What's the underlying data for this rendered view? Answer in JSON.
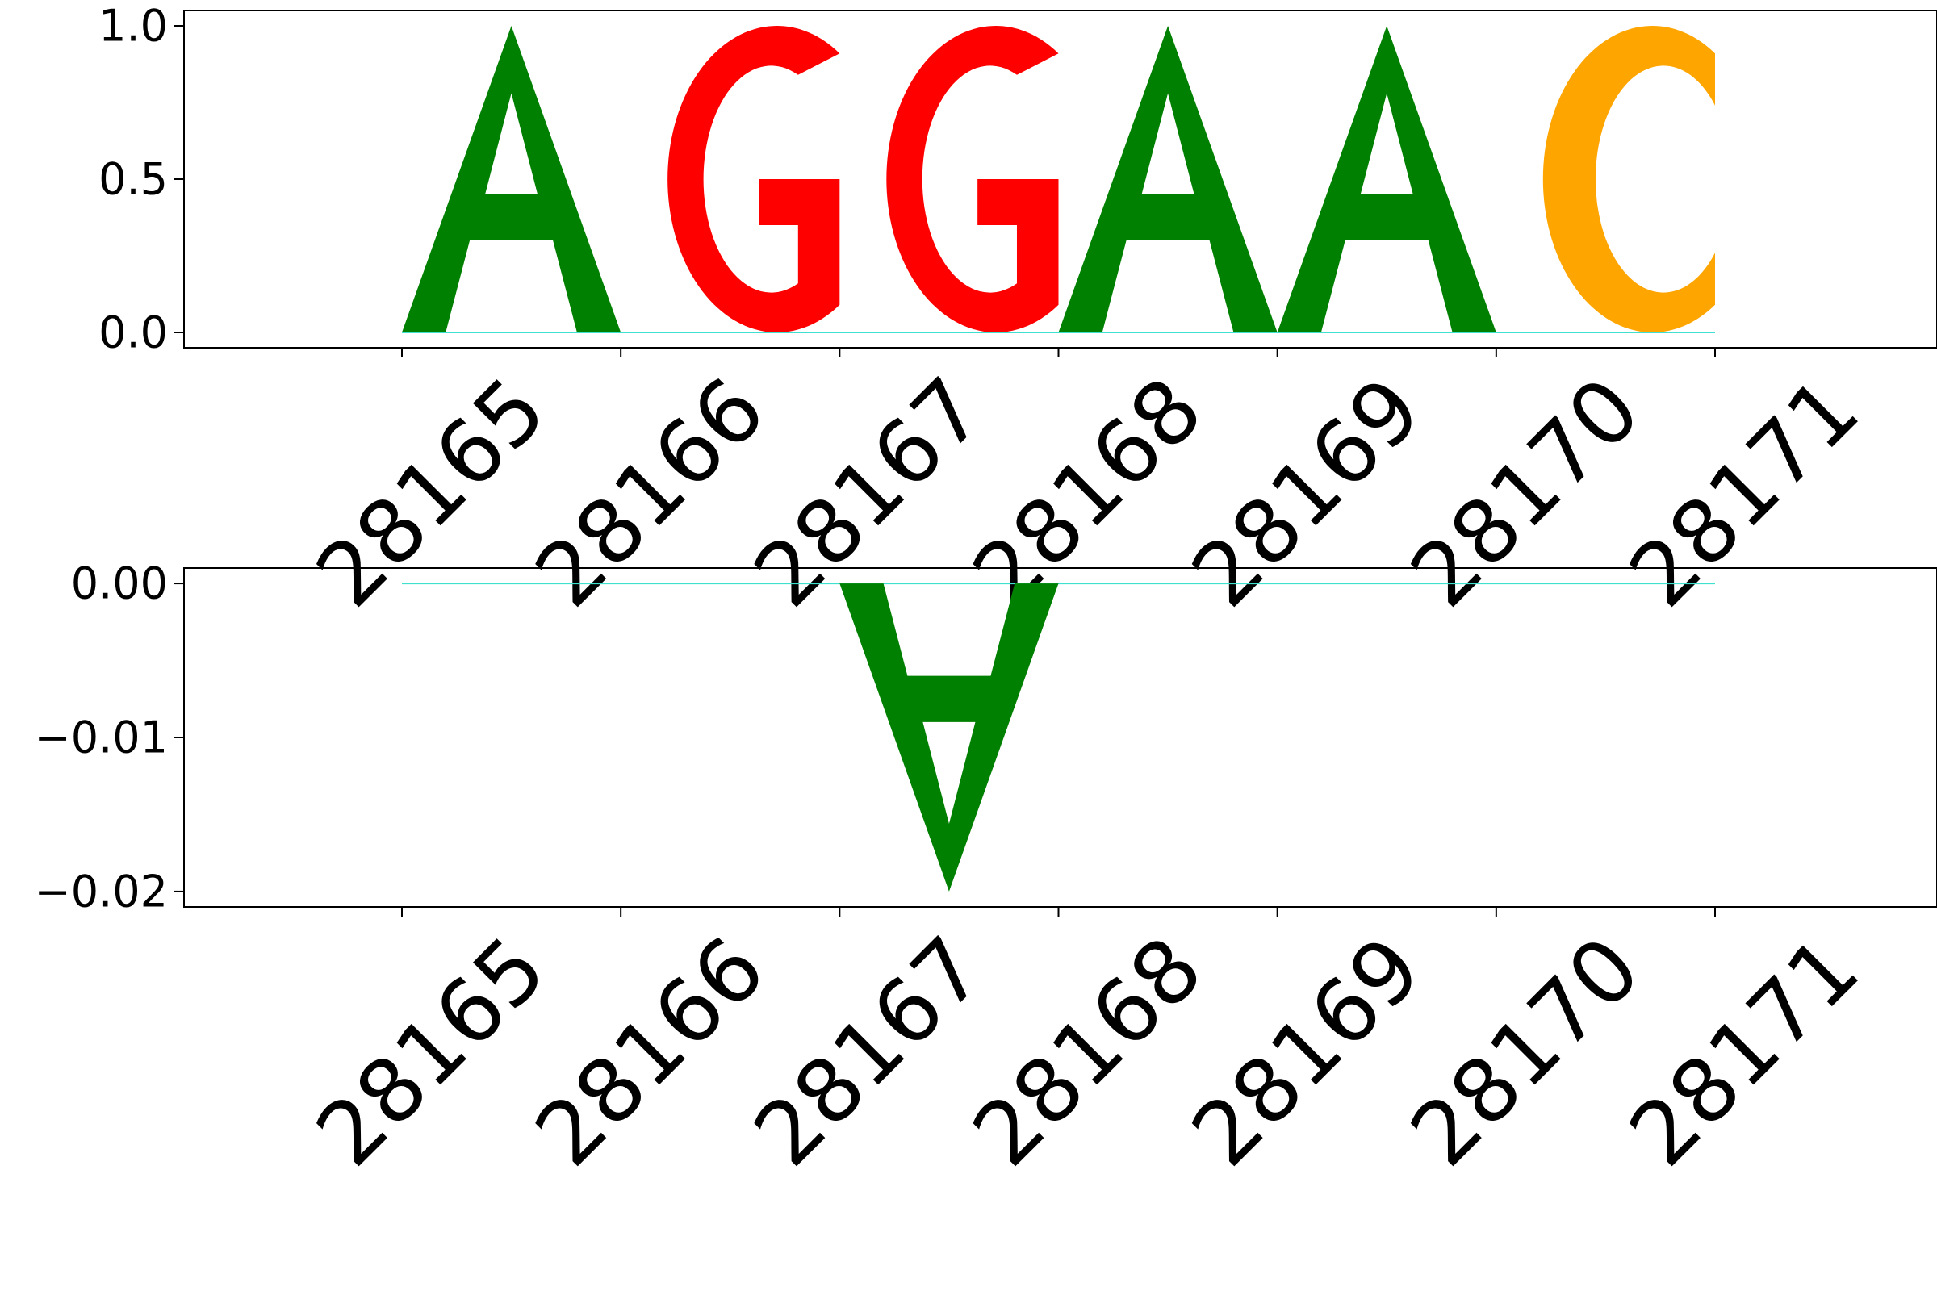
{
  "chart_data": [
    {
      "type": "sequence-logo",
      "panel": "positive",
      "x_ticks": [
        "28165",
        "28166",
        "28167",
        "28168",
        "28169",
        "28170",
        "28171"
      ],
      "y_ticks": [
        "0.0",
        "0.5",
        "1.0"
      ],
      "ylim": [
        -0.05,
        1.05
      ],
      "grid": false,
      "letters": [
        {
          "position": "28165",
          "letter": "A",
          "value": 1.0
        },
        {
          "position": "28166",
          "letter": "G",
          "value": 1.0
        },
        {
          "position": "28167",
          "letter": "G",
          "value": 1.0
        },
        {
          "position": "28168",
          "letter": "A",
          "value": 1.0
        },
        {
          "position": "28169",
          "letter": "A",
          "value": 1.0
        },
        {
          "position": "28170",
          "letter": "C",
          "value": 1.0
        }
      ]
    },
    {
      "type": "sequence-logo",
      "panel": "negative",
      "x_ticks": [
        "28165",
        "28166",
        "28167",
        "28168",
        "28169",
        "28170",
        "28171"
      ],
      "y_ticks": [
        "0.00",
        "−0.01",
        "−0.02"
      ],
      "ylim": [
        -0.021,
        0.001
      ],
      "grid": false,
      "letters": [
        {
          "position": "28167",
          "letter": "A",
          "value": -0.02
        }
      ]
    }
  ],
  "colors": {
    "A": "#008000",
    "C": "#ffa500",
    "G": "#ff0000",
    "T": "#ff0000",
    "baseline": "#40e0d0"
  }
}
